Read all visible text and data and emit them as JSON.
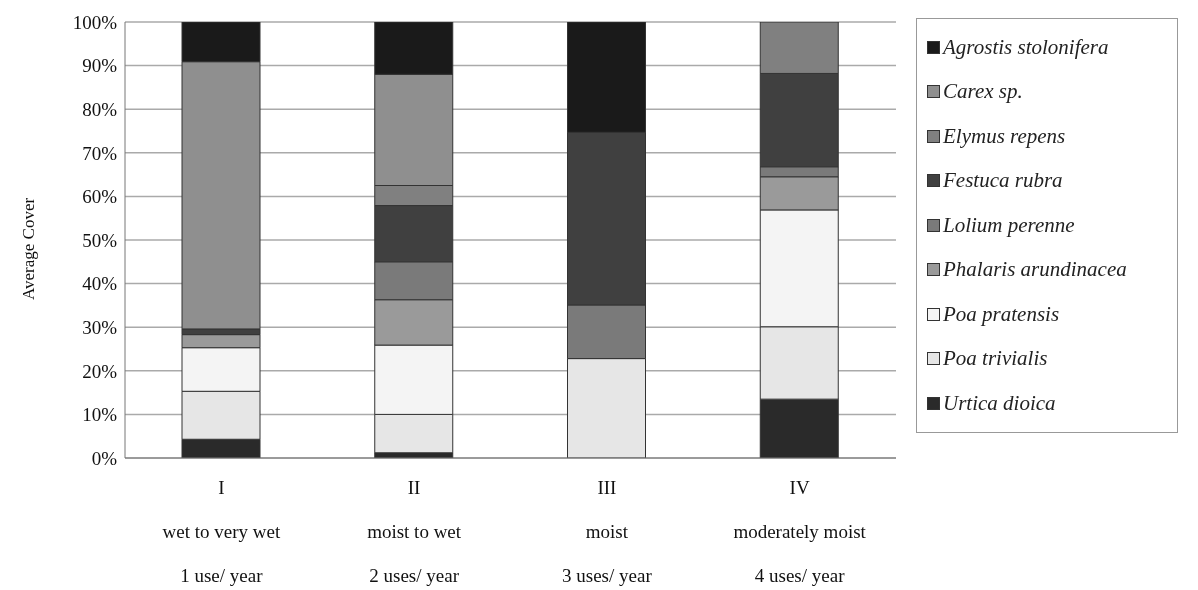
{
  "chart_data": {
    "type": "bar",
    "stacked": true,
    "ylabel": "Average Cover",
    "categories": [
      "I\nwet to very wet\n1 use/  year",
      "II\nmoist to wet\n2 uses/  year",
      "III\nmoist\n3 uses/  year",
      "IV\nmoderately moist\n4 uses/  year"
    ],
    "series": [
      {
        "name": "Urtica dioica",
        "color": "#2a2a2a",
        "values": [
          4.3,
          1.2,
          0,
          13.5
        ]
      },
      {
        "name": "Poa trivialis",
        "color": "#e6e6e6",
        "values": [
          11,
          8.8,
          22.8,
          16.6
        ]
      },
      {
        "name": "Poa pratensis",
        "color": "#f4f4f4",
        "values": [
          10,
          15.9,
          0,
          26.8
        ]
      },
      {
        "name": "Phalaris arundinacea",
        "color": "#9a9a9a",
        "values": [
          3,
          10.4,
          0,
          7.6
        ]
      },
      {
        "name": "Lolium perenne",
        "color": "#7a7a7a",
        "values": [
          0,
          8.7,
          12.3,
          2.3
        ]
      },
      {
        "name": "Festuca rubra",
        "color": "#404040",
        "values": [
          1.3,
          12.9,
          39.6,
          21.4
        ]
      },
      {
        "name": "Elymus repens",
        "color": "#808080",
        "values": [
          0,
          4.6,
          0,
          11.8
        ]
      },
      {
        "name": "Carex sp.",
        "color": "#8f8f8f",
        "values": [
          61.3,
          25.5,
          0,
          0
        ]
      },
      {
        "name": "Agrostis stolonifera",
        "color": "#1a1a1a",
        "values": [
          9.1,
          12,
          25.3,
          0
        ]
      }
    ],
    "ylim": [
      0,
      100
    ],
    "yticks": [
      {
        "value": 0,
        "label": "0%"
      },
      {
        "value": 10,
        "label": "10%"
      },
      {
        "value": 20,
        "label": "20%"
      },
      {
        "value": 30,
        "label": "30%"
      },
      {
        "value": 40,
        "label": "40%"
      },
      {
        "value": 50,
        "label": "50%"
      },
      {
        "value": 60,
        "label": "60%"
      },
      {
        "value": 70,
        "label": "70%"
      },
      {
        "value": 80,
        "label": "80%"
      },
      {
        "value": 90,
        "label": "90%"
      },
      {
        "value": 100,
        "label": "100%"
      }
    ],
    "grid": "y",
    "legend": "right"
  }
}
